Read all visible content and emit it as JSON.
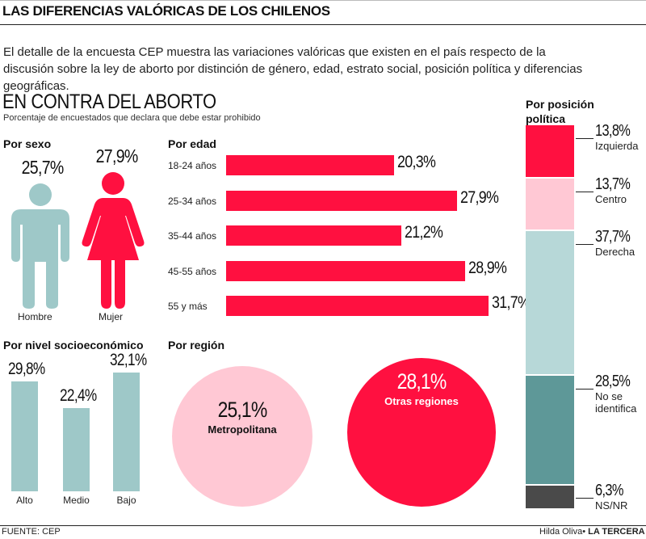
{
  "header": {
    "title": "LAS DIFERENCIAS VALÓRICAS DE LOS CHILENOS"
  },
  "intro": "El detalle de la encuesta CEP muestra las variaciones valóricas que existen en el país respecto de la discusión sobre la ley de aborto por distinción de género, edad, estrato social, posición política y diferencias geográficas.",
  "section": {
    "title": "EN CONTRA DEL ABORTO",
    "subtitle": "Porcentaje de encuestados que declara que debe estar prohibido"
  },
  "colors": {
    "red": "#ff1040",
    "pink": "#ffc8d4",
    "light_teal": "#b7d8d8",
    "mid_teal": "#9ec8c8",
    "dark_teal": "#5e9898",
    "dark_gray": "#4a4a4a"
  },
  "chart_data": [
    {
      "type": "pictogram",
      "title": "Por sexo",
      "categories": [
        "Hombre",
        "Mujer"
      ],
      "labels": [
        "25,7%",
        "27,9%"
      ],
      "values": [
        25.7,
        27.9
      ],
      "icons": [
        "man-icon",
        "woman-icon"
      ]
    },
    {
      "type": "bar",
      "orientation": "horizontal",
      "title": "Por edad",
      "categories": [
        "18-24 años",
        "25-34 años",
        "35-44 años",
        "45-55 años",
        "55 y más"
      ],
      "labels": [
        "20,3%",
        "27,9%",
        "21,2%",
        "28,9%",
        "31,7%"
      ],
      "values": [
        20.3,
        27.9,
        21.2,
        28.9,
        31.7
      ]
    },
    {
      "type": "bar",
      "orientation": "vertical",
      "title": "Por nivel socioeconómico",
      "categories": [
        "Alto",
        "Medio",
        "Bajo"
      ],
      "labels": [
        "29,8%",
        "22,4%",
        "32,1%"
      ],
      "values": [
        29.8,
        22.4,
        32.1
      ]
    },
    {
      "type": "bubble",
      "title": "Por región",
      "categories": [
        "Metropolitana",
        "Otras regiones"
      ],
      "labels": [
        "25,1%",
        "28,1%"
      ],
      "values": [
        25.1,
        28.1
      ]
    },
    {
      "type": "stacked-bar",
      "title": "Por posición política",
      "categories": [
        "Izquierda",
        "Centro",
        "Derecha",
        "No se identifica",
        "NS/NR"
      ],
      "labels": [
        "13,8%",
        "13,7%",
        "37,7%",
        "28,5%",
        "6,3%"
      ],
      "values": [
        13.8,
        13.7,
        37.7,
        28.5,
        6.3
      ]
    }
  ],
  "footer": {
    "source": "FUENTE: CEP",
    "author": "Hilda Oliva",
    "separator": "•",
    "outlet": "LA TERCERA"
  }
}
